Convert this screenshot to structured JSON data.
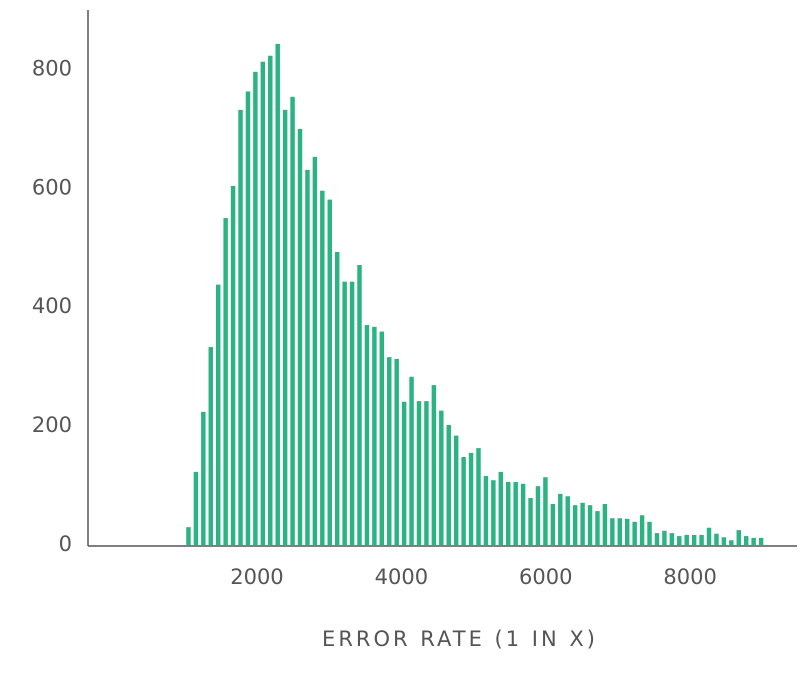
{
  "chart_data": {
    "type": "histogram",
    "x_label": "ERROR RATE (1 IN X)",
    "bins": [
      1000,
      1103,
      1206,
      1309,
      1412,
      1515,
      1618,
      1721,
      1824,
      1927,
      2030,
      2133,
      2236,
      2339,
      2442,
      2545,
      2648,
      2751,
      2854,
      2957,
      3060,
      3163,
      3266,
      3369,
      3472,
      3575,
      3678,
      3781,
      3884,
      3987,
      4090,
      4193,
      4296,
      4399,
      4502,
      4605,
      4708,
      4811,
      4914,
      5017,
      5120,
      5223,
      5326,
      5429,
      5532,
      5635,
      5738,
      5841,
      5944,
      6047,
      6150,
      6253,
      6356,
      6459,
      6562,
      6665,
      6768,
      6871,
      6974,
      7077,
      7180,
      7283,
      7386,
      7489,
      7592,
      7695,
      7798,
      7901,
      8004,
      8107,
      8210,
      8313,
      8416,
      8519,
      8622,
      8725,
      8828,
      8931,
      9034
    ],
    "counts": [
      30,
      123,
      224,
      333,
      438,
      550,
      604,
      732,
      763,
      796,
      813,
      823,
      843,
      732,
      754,
      700,
      631,
      653,
      596,
      581,
      493,
      443,
      443,
      471,
      370,
      367,
      359,
      316,
      313,
      241,
      283,
      242,
      242,
      269,
      226,
      202,
      184,
      148,
      155,
      163,
      116,
      109,
      123,
      106,
      106,
      103,
      79,
      99,
      114,
      69,
      86,
      82,
      67,
      71,
      67,
      57,
      69,
      45,
      45,
      44,
      39,
      50,
      39,
      20,
      24,
      20,
      15,
      17,
      17,
      17,
      29,
      19,
      13,
      8,
      25,
      15,
      12,
      12
    ],
    "color": "#2bb482",
    "xlim": [
      -340,
      9480
    ],
    "ylim": [
      0,
      900
    ],
    "xticks": [
      2000,
      4000,
      6000,
      8000
    ],
    "yticks": [
      0,
      200,
      400,
      600,
      800
    ],
    "grid": false
  }
}
